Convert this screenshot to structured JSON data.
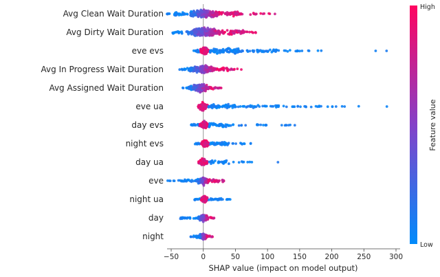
{
  "chart_data": {
    "type": "scatter",
    "subtype": "shap-beeswarm",
    "xlabel": "SHAP value (impact on model output)",
    "xlim": [
      -75,
      310
    ],
    "grid": false,
    "zero_line_color": "#999999",
    "xticks": {
      "values": [
        -50,
        0,
        50,
        100,
        150,
        200,
        250,
        300
      ],
      "labels": [
        "−50",
        "0",
        "50",
        "100",
        "150",
        "200",
        "250",
        "300"
      ]
    },
    "colorbar": {
      "label": "Feature value",
      "high_label": "High",
      "low_label": "Low",
      "high_color": "#ff0560",
      "mid_color": "#8441c8",
      "low_color": "#008bfb",
      "position": "right"
    },
    "features": [
      {
        "name": "Avg Clean Wait Duration",
        "shap_range": [
          -62,
          112
        ],
        "blobs": [
          {
            "x0": -62,
            "x1": -48,
            "n": 5,
            "c": "blue",
            "s": 1.5
          },
          {
            "x0": -45,
            "x1": -28,
            "n": 22,
            "c": "blue",
            "s": 3.5
          },
          {
            "x0": -28,
            "x1": 32,
            "n": 230,
            "c": "grad",
            "s": 9
          },
          {
            "x0": 32,
            "x1": 62,
            "n": 55,
            "c": "pink",
            "s": 5
          },
          {
            "x0": 62,
            "x1": 90,
            "n": 10,
            "c": "pink",
            "s": 2
          },
          {
            "x0": 90,
            "x1": 112,
            "n": 5,
            "c": "pink",
            "s": 1
          }
        ]
      },
      {
        "name": "Avg Dirty Wait Duration",
        "shap_range": [
          -52,
          86
        ],
        "blobs": [
          {
            "x0": -52,
            "x1": -32,
            "n": 14,
            "c": "blue",
            "s": 2.5
          },
          {
            "x0": -32,
            "x1": 36,
            "n": 230,
            "c": "grad",
            "s": 9
          },
          {
            "x0": 36,
            "x1": 64,
            "n": 45,
            "c": "pink",
            "s": 4.5
          },
          {
            "x0": 64,
            "x1": 86,
            "n": 9,
            "c": "pink",
            "s": 1.5
          }
        ]
      },
      {
        "name": "eve evs",
        "shap_range": [
          -16,
          287
        ],
        "blobs": [
          {
            "x0": -16,
            "x1": -5,
            "n": 14,
            "c": "blue",
            "s": 2.5
          },
          {
            "x0": -5,
            "x1": 9,
            "n": 170,
            "c": "pink",
            "s": 8
          },
          {
            "x0": 9,
            "x1": 55,
            "n": 80,
            "c": "blue",
            "s": 4.5
          },
          {
            "x0": 55,
            "x1": 115,
            "n": 40,
            "c": "blue",
            "s": 2.5
          },
          {
            "x0": 115,
            "x1": 155,
            "n": 12,
            "c": "blue",
            "s": 1.2
          },
          {
            "x0": 160,
            "x1": 205,
            "n": 4,
            "c": "blue",
            "s": 0.5
          },
          {
            "x0": 268,
            "x1": 272,
            "n": 1,
            "c": "blue",
            "s": 0
          },
          {
            "x0": 283,
            "x1": 287,
            "n": 1,
            "c": "blue",
            "s": 0
          }
        ]
      },
      {
        "name": "Avg In Progress Wait Duration",
        "shap_range": [
          -38,
          60
        ],
        "blobs": [
          {
            "x0": -38,
            "x1": -26,
            "n": 10,
            "c": "blue",
            "s": 2
          },
          {
            "x0": -26,
            "x1": 24,
            "n": 190,
            "c": "grad",
            "s": 8.5
          },
          {
            "x0": 24,
            "x1": 44,
            "n": 28,
            "c": "pink",
            "s": 3
          },
          {
            "x0": 44,
            "x1": 60,
            "n": 5,
            "c": "pink",
            "s": 1
          }
        ]
      },
      {
        "name": "Avg Assigned Wait Duration",
        "shap_range": [
          -32,
          28
        ],
        "blobs": [
          {
            "x0": -32,
            "x1": -24,
            "n": 6,
            "c": "blue",
            "s": 1.5
          },
          {
            "x0": -24,
            "x1": 16,
            "n": 185,
            "c": "grad",
            "s": 8.5
          },
          {
            "x0": 16,
            "x1": 28,
            "n": 12,
            "c": "pink",
            "s": 2
          }
        ]
      },
      {
        "name": "eve ua",
        "shap_range": [
          -9,
          287
        ],
        "blobs": [
          {
            "x0": -9,
            "x1": 8,
            "n": 160,
            "c": "pink",
            "s": 7.5
          },
          {
            "x0": 8,
            "x1": 60,
            "n": 60,
            "c": "blue",
            "s": 4
          },
          {
            "x0": 60,
            "x1": 130,
            "n": 35,
            "c": "blue",
            "s": 2.2
          },
          {
            "x0": 130,
            "x1": 200,
            "n": 16,
            "c": "blue",
            "s": 1.2
          },
          {
            "x0": 200,
            "x1": 252,
            "n": 6,
            "c": "blue",
            "s": 0.6
          },
          {
            "x0": 283,
            "x1": 287,
            "n": 1,
            "c": "blue",
            "s": 0
          }
        ]
      },
      {
        "name": "day evs",
        "shap_range": [
          -22,
          152
        ],
        "blobs": [
          {
            "x0": -22,
            "x1": -6,
            "n": 14,
            "c": "blue",
            "s": 2
          },
          {
            "x0": -6,
            "x1": 9,
            "n": 160,
            "c": "pink",
            "s": 7.5
          },
          {
            "x0": 9,
            "x1": 50,
            "n": 45,
            "c": "blue",
            "s": 3.5
          },
          {
            "x0": 50,
            "x1": 100,
            "n": 14,
            "c": "blue",
            "s": 1.5
          },
          {
            "x0": 100,
            "x1": 152,
            "n": 7,
            "c": "blue",
            "s": 0.6
          }
        ]
      },
      {
        "name": "night evs",
        "shap_range": [
          -13,
          76
        ],
        "blobs": [
          {
            "x0": -13,
            "x1": -4,
            "n": 10,
            "c": "blue",
            "s": 2
          },
          {
            "x0": -4,
            "x1": 9,
            "n": 150,
            "c": "pink",
            "s": 7.5
          },
          {
            "x0": 9,
            "x1": 42,
            "n": 40,
            "c": "blue",
            "s": 3
          },
          {
            "x0": 42,
            "x1": 76,
            "n": 10,
            "c": "blue",
            "s": 1.2
          }
        ]
      },
      {
        "name": "day ua",
        "shap_range": [
          -8,
          120
        ],
        "blobs": [
          {
            "x0": -8,
            "x1": 7,
            "n": 140,
            "c": "pink",
            "s": 7
          },
          {
            "x0": 7,
            "x1": 40,
            "n": 30,
            "c": "blue",
            "s": 3
          },
          {
            "x0": 40,
            "x1": 78,
            "n": 8,
            "c": "blue",
            "s": 1.2
          },
          {
            "x0": 116,
            "x1": 120,
            "n": 1,
            "c": "blue",
            "s": 0
          }
        ]
      },
      {
        "name": "eve",
        "shap_range": [
          -56,
          34
        ],
        "blobs": [
          {
            "x0": -56,
            "x1": -34,
            "n": 8,
            "c": "blue",
            "s": 1
          },
          {
            "x0": -34,
            "x1": -12,
            "n": 18,
            "c": "blue",
            "s": 2
          },
          {
            "x0": -12,
            "x1": 12,
            "n": 160,
            "c": "grad",
            "s": 7.5
          },
          {
            "x0": 12,
            "x1": 34,
            "n": 30,
            "c": "pink",
            "s": 3
          }
        ]
      },
      {
        "name": "night ua",
        "shap_range": [
          -14,
          50
        ],
        "blobs": [
          {
            "x0": -14,
            "x1": -4,
            "n": 10,
            "c": "blue",
            "s": 2
          },
          {
            "x0": -4,
            "x1": 8,
            "n": 130,
            "c": "pink",
            "s": 7
          },
          {
            "x0": 8,
            "x1": 28,
            "n": 22,
            "c": "blue",
            "s": 2.5
          },
          {
            "x0": 28,
            "x1": 50,
            "n": 7,
            "c": "blue",
            "s": 1
          }
        ]
      },
      {
        "name": "day",
        "shap_range": [
          -36,
          20
        ],
        "blobs": [
          {
            "x0": -36,
            "x1": -10,
            "n": 22,
            "c": "blue",
            "s": 2
          },
          {
            "x0": -10,
            "x1": 10,
            "n": 140,
            "c": "grad",
            "s": 7
          },
          {
            "x0": 10,
            "x1": 20,
            "n": 10,
            "c": "pink",
            "s": 1.8
          }
        ]
      },
      {
        "name": "night",
        "shap_range": [
          -22,
          15
        ],
        "blobs": [
          {
            "x0": -22,
            "x1": -8,
            "n": 14,
            "c": "blue",
            "s": 2.2
          },
          {
            "x0": -8,
            "x1": 8,
            "n": 130,
            "c": "grad",
            "s": 6.5
          },
          {
            "x0": 8,
            "x1": 15,
            "n": 7,
            "c": "pink",
            "s": 1.5
          }
        ]
      }
    ]
  }
}
